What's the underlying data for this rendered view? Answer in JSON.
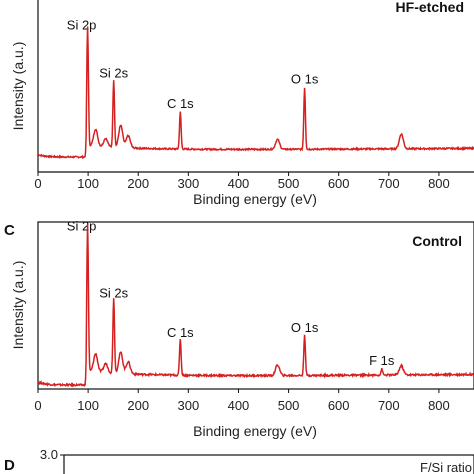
{
  "chart_data": [
    {
      "type": "line",
      "panel": "",
      "sample": "HF-etched",
      "xlabel": "Binding energy (eV)",
      "ylabel": "Intensity (a.u.)",
      "xlim": [
        0,
        870
      ],
      "xticks": [
        0,
        100,
        200,
        300,
        400,
        500,
        600,
        700,
        800
      ],
      "color": "#d62020",
      "peaks": [
        {
          "name": "Si 2p",
          "x": 99,
          "height": 0.97
        },
        {
          "name": "Si 2s",
          "x": 151,
          "height": 0.55
        },
        {
          "name": "C 1s",
          "x": 284,
          "height": 0.3
        },
        {
          "name": "O 1s",
          "x": 532,
          "height": 0.5
        }
      ],
      "minor_features": [
        {
          "x": 115,
          "height": 0.14
        },
        {
          "x": 135,
          "height": 0.07
        },
        {
          "x": 165,
          "height": 0.18
        },
        {
          "x": 180,
          "height": 0.1
        },
        {
          "x": 478,
          "height": 0.08
        },
        {
          "x": 725,
          "height": 0.12
        }
      ]
    },
    {
      "type": "line",
      "panel": "C",
      "sample": "Control",
      "xlabel": "Binding energy (eV)",
      "ylabel": "Intensity (a.u.)",
      "xlim": [
        0,
        870
      ],
      "xticks": [
        0,
        100,
        200,
        300,
        400,
        500,
        600,
        700,
        800
      ],
      "color": "#d62020",
      "peaks": [
        {
          "name": "Si 2p",
          "x": 99,
          "height": 0.97
        },
        {
          "name": "Si 2s",
          "x": 151,
          "height": 0.5
        },
        {
          "name": "C 1s",
          "x": 284,
          "height": 0.24
        },
        {
          "name": "O 1s",
          "x": 532,
          "height": 0.27
        },
        {
          "name": "F 1s",
          "x": 686,
          "height": 0.04
        }
      ],
      "minor_features": [
        {
          "x": 115,
          "height": 0.12
        },
        {
          "x": 135,
          "height": 0.06
        },
        {
          "x": 165,
          "height": 0.14
        },
        {
          "x": 180,
          "height": 0.08
        },
        {
          "x": 478,
          "height": 0.07
        },
        {
          "x": 725,
          "height": 0.06
        }
      ]
    },
    {
      "type": "line",
      "panel": "D",
      "ytick_top": "3.0",
      "legend_partial": "F/Si ratio"
    }
  ]
}
